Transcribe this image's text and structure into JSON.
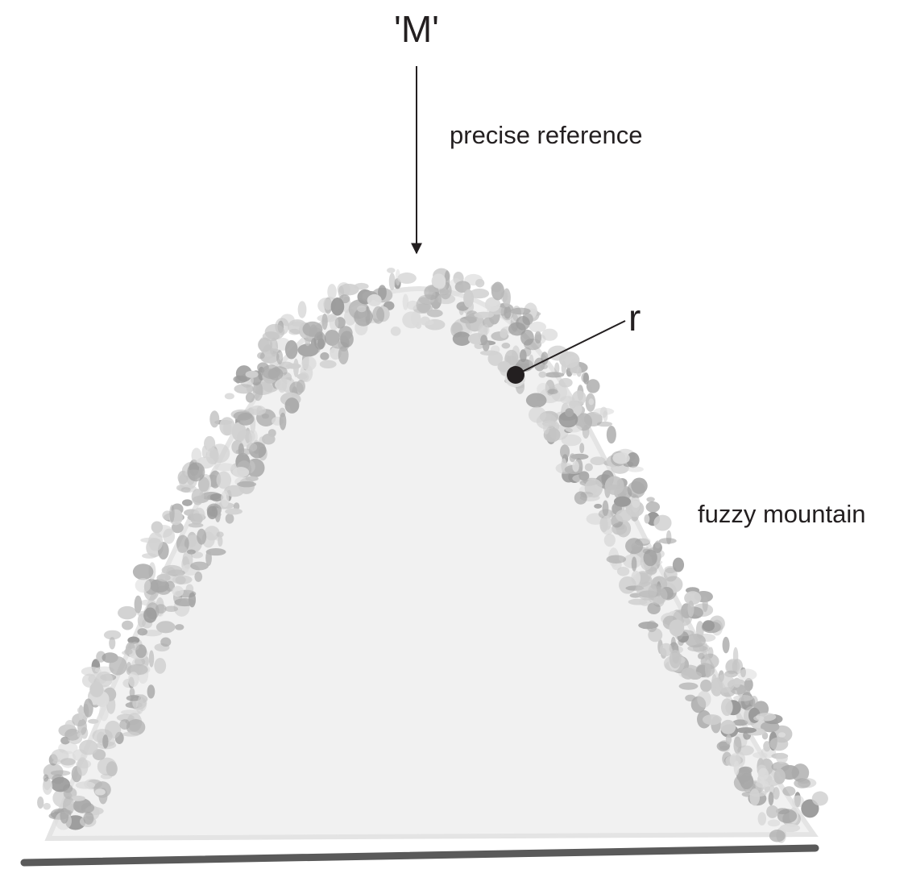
{
  "labels": {
    "name": "'M'",
    "arrow_label": "precise reference",
    "point": "r",
    "mountain": "fuzzy mountain"
  }
}
